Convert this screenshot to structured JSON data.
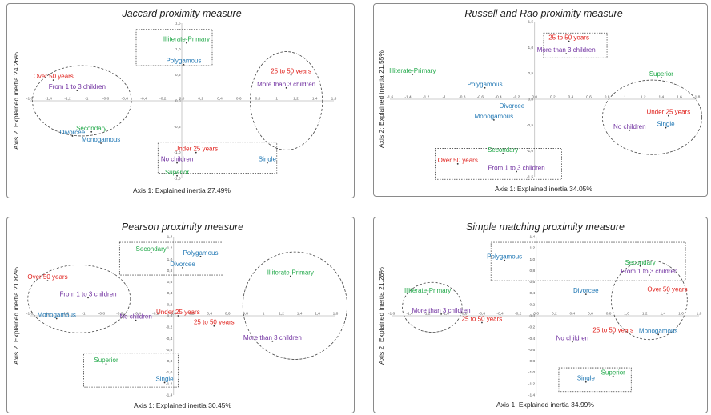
{
  "colors": {
    "age": "#e0201b",
    "children": "#7030a0",
    "marital": "#1f77b4",
    "education": "#22a94a"
  },
  "chart_data": [
    {
      "type": "scatter",
      "title": "Jaccard proximity measure",
      "xlabel": "Axis 1: Explained inertia 27.49%",
      "ylabel": "Axis 2: Explained inertia 24.26%",
      "xlim": [
        -1.6,
        1.6
      ],
      "ylim": [
        -1.5,
        1.5
      ],
      "xticks": [
        "-1,6",
        "-1,4",
        "-1,2",
        "-1",
        "-0,8",
        "-0,6",
        "-0,4",
        "-0,2",
        "0,0",
        "0,2",
        "0,4",
        "0,6",
        "0,8",
        "1",
        "1,2",
        "1,4",
        "1,6"
      ],
      "yticks": [
        "1,5",
        "1,0",
        "0,5",
        "0,0",
        "-0,5",
        "-1,0",
        "-1,5"
      ],
      "points": [
        {
          "label": "Illiterate-Primary",
          "x": 0.05,
          "y": 1.12,
          "category": "education"
        },
        {
          "label": "Polygamous",
          "x": 0.02,
          "y": 0.7,
          "category": "marital"
        },
        {
          "label": "Over 50 years",
          "x": -1.35,
          "y": 0.4,
          "category": "age"
        },
        {
          "label": "From 1 to 3 children",
          "x": -1.1,
          "y": 0.2,
          "category": "children"
        },
        {
          "label": "Secondary",
          "x": -0.95,
          "y": -0.6,
          "category": "education"
        },
        {
          "label": "Divorcee",
          "x": -1.15,
          "y": -0.68,
          "category": "marital"
        },
        {
          "label": "Monogamous",
          "x": -0.85,
          "y": -0.82,
          "category": "marital"
        },
        {
          "label": "25 to 50 years",
          "x": 1.15,
          "y": 0.5,
          "category": "age"
        },
        {
          "label": "More than 3 children",
          "x": 1.1,
          "y": 0.25,
          "category": "children"
        },
        {
          "label": "Under 25 years",
          "x": 0.15,
          "y": -1.0,
          "category": "age"
        },
        {
          "label": "No children",
          "x": -0.05,
          "y": -1.2,
          "category": "children"
        },
        {
          "label": "Superior",
          "x": -0.05,
          "y": -1.45,
          "category": "education"
        },
        {
          "label": "Single",
          "x": 0.9,
          "y": -1.2,
          "category": "marital"
        }
      ]
    },
    {
      "type": "scatter",
      "title": "Russell and Rao proximity measure",
      "xlabel": "Axis 1: Explained inertia 34.05%",
      "ylabel": "Axis 2: Explained inertia 21.55%",
      "xlim": [
        -1.6,
        1.8
      ],
      "ylim": [
        -1.5,
        1.5
      ],
      "xticks": [
        "-1,6",
        "-1,4",
        "-1,2",
        "-1",
        "-0,8",
        "-0,6",
        "-0,4",
        "-0,2",
        "0,0",
        "0,2",
        "0,4",
        "0,6",
        "0,8",
        "1",
        "1,2",
        "1,4",
        "1,6",
        "1,8"
      ],
      "yticks": [
        "1,5",
        "1,0",
        "0,5",
        "0,0",
        "-0,5",
        "-1,0",
        "-1,5"
      ],
      "points": [
        {
          "label": "25 to 50 years",
          "x": 0.38,
          "y": 1.12,
          "category": "age"
        },
        {
          "label": "More than 3 children",
          "x": 0.35,
          "y": 0.88,
          "category": "children"
        },
        {
          "label": "Illiterate-Primary",
          "x": -1.35,
          "y": 0.48,
          "category": "education"
        },
        {
          "label": "Polygamous",
          "x": -0.55,
          "y": 0.22,
          "category": "marital"
        },
        {
          "label": "Divorcee",
          "x": -0.25,
          "y": -0.2,
          "category": "marital"
        },
        {
          "label": "Monogamous",
          "x": -0.45,
          "y": -0.4,
          "category": "marital"
        },
        {
          "label": "Superior",
          "x": 1.4,
          "y": 0.42,
          "category": "education"
        },
        {
          "label": "Under 25 years",
          "x": 1.48,
          "y": -0.32,
          "category": "age"
        },
        {
          "label": "No children",
          "x": 1.05,
          "y": -0.6,
          "category": "children"
        },
        {
          "label": "Single",
          "x": 1.45,
          "y": -0.55,
          "category": "marital"
        },
        {
          "label": "Secondary",
          "x": -0.35,
          "y": -1.05,
          "category": "education"
        },
        {
          "label": "Over 50 years",
          "x": -0.85,
          "y": -1.25,
          "category": "age"
        },
        {
          "label": "From 1 to 3 children",
          "x": -0.2,
          "y": -1.4,
          "category": "children"
        }
      ]
    },
    {
      "type": "scatter",
      "title": "Pearson proximity measure",
      "xlabel": "Axis 1: Explained inertia 30.45%",
      "ylabel": "Axis 2: Explained inertia 21.82%",
      "xlim": [
        -1.6,
        1.8
      ],
      "ylim": [
        -1.4,
        1.4
      ],
      "xticks": [
        "-1,6",
        "-1,4",
        "-1,2",
        "-1",
        "-0,8",
        "-0,6",
        "-0,4",
        "-0,2",
        "0,0",
        "0,2",
        "0,4",
        "0,6",
        "0,8",
        "1",
        "1,2",
        "1,4",
        "1,6",
        "1,8"
      ],
      "yticks": [
        "1,4",
        "1,2",
        "1,0",
        "0,8",
        "0,6",
        "0,4",
        "0,2",
        "0,0",
        "-0,2",
        "-0,4",
        "-0,6",
        "-0,8",
        "-1,0",
        "-1,2",
        "-1,4"
      ],
      "points": [
        {
          "label": "Secondary",
          "x": -0.25,
          "y": 1.12,
          "category": "education"
        },
        {
          "label": "Polygamous",
          "x": 0.3,
          "y": 1.05,
          "category": "marital"
        },
        {
          "label": "Divorcee",
          "x": 0.1,
          "y": 0.85,
          "category": "marital"
        },
        {
          "label": "Over 50 years",
          "x": -1.4,
          "y": 0.62,
          "category": "age"
        },
        {
          "label": "From 1 to 3 children",
          "x": -0.95,
          "y": 0.32,
          "category": "children"
        },
        {
          "label": "Monogamous",
          "x": -1.3,
          "y": -0.05,
          "category": "marital"
        },
        {
          "label": "No children",
          "x": -0.42,
          "y": -0.08,
          "category": "children"
        },
        {
          "label": "Under 25 years",
          "x": 0.05,
          "y": 0.0,
          "category": "age"
        },
        {
          "label": "25 to 50 years",
          "x": 0.45,
          "y": -0.18,
          "category": "age"
        },
        {
          "label": "Illiterate-Primary",
          "x": 1.3,
          "y": 0.7,
          "category": "education"
        },
        {
          "label": "More than 3 children",
          "x": 1.1,
          "y": -0.45,
          "category": "children"
        },
        {
          "label": "Superior",
          "x": -0.75,
          "y": -0.85,
          "category": "education"
        },
        {
          "label": "Single",
          "x": -0.1,
          "y": -1.18,
          "category": "marital"
        }
      ]
    },
    {
      "type": "scatter",
      "title": "Simple matching proximity measure",
      "xlabel": "Axis 1: Explained inertia 34.99%",
      "ylabel": "Axis 2: Explained inertia 21.28%",
      "xlim": [
        -1.6,
        1.8
      ],
      "ylim": [
        -1.4,
        1.4
      ],
      "xticks": [
        "-1,6",
        "-1,4",
        "-1,2*",
        "-1,0",
        "-0,8",
        "-0,6",
        "-0,4",
        "-0,2",
        "0,0",
        "0,2",
        "0,4",
        "0,6",
        "0,8",
        "1,0",
        "1,2",
        "1,4",
        "1,6",
        "1,8"
      ],
      "yticks": [
        "1,4",
        "1,2",
        "1,0",
        "0,8",
        "0,6",
        "0,4",
        "0,2",
        "0,0",
        "-0,2",
        "-0,4",
        "-0,6",
        "-0,8",
        "-1,0",
        "-1,2",
        "-1,4"
      ],
      "points": [
        {
          "label": "Polygamous",
          "x": -0.35,
          "y": 0.98,
          "category": "marital"
        },
        {
          "label": "Secondary",
          "x": 1.15,
          "y": 0.88,
          "category": "education"
        },
        {
          "label": "From 1 to 3 children",
          "x": 1.25,
          "y": 0.72,
          "category": "children"
        },
        {
          "label": "Over 50 years",
          "x": 1.45,
          "y": 0.4,
          "category": "age"
        },
        {
          "label": "Divorcee",
          "x": 0.55,
          "y": 0.38,
          "category": "marital"
        },
        {
          "label": "Illiterate-Primary",
          "x": -1.2,
          "y": 0.38,
          "category": "education"
        },
        {
          "label": "More than 3 children",
          "x": -1.05,
          "y": 0.03,
          "category": "children"
        },
        {
          "label": "25 to 50 years",
          "x": -0.6,
          "y": -0.12,
          "category": "age"
        },
        {
          "label": "25 to 50 years",
          "x": 0.85,
          "y": -0.32,
          "category": "age"
        },
        {
          "label": "No children",
          "x": 0.4,
          "y": -0.46,
          "category": "children"
        },
        {
          "label": "Monogamous",
          "x": 1.35,
          "y": -0.33,
          "category": "marital"
        },
        {
          "label": "Superior",
          "x": 0.85,
          "y": -1.07,
          "category": "education"
        },
        {
          "label": "Single",
          "x": 0.55,
          "y": -1.17,
          "category": "marital"
        }
      ]
    }
  ]
}
